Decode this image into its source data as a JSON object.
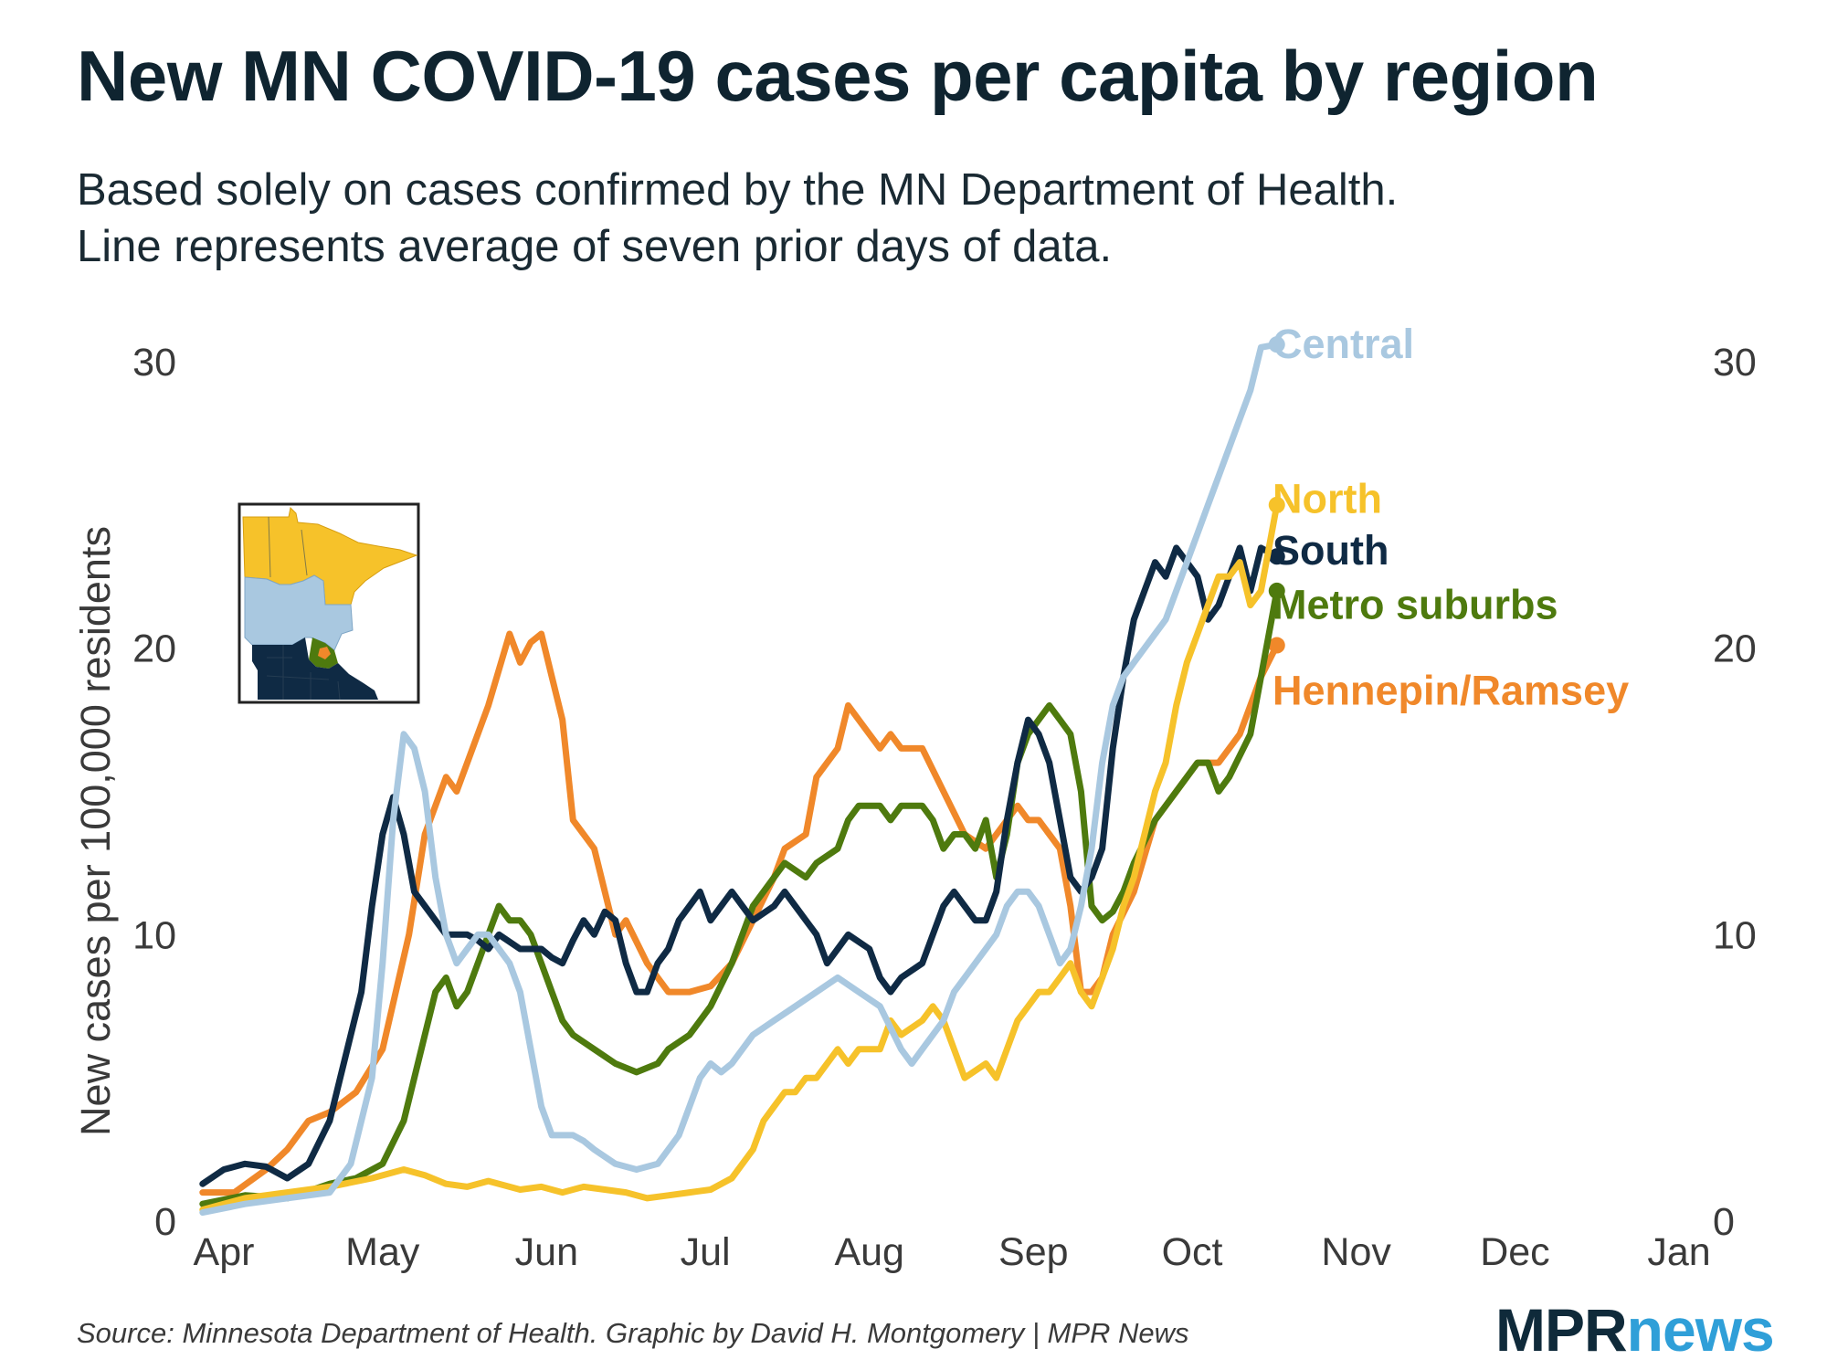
{
  "title": "New MN COVID-19 cases per capita by region",
  "subtitle_line1": "Based solely on cases confirmed by the MN Department of Health.",
  "subtitle_line2": "Line represents average of seven prior days of data.",
  "source": "Source: Minnesota Department of Health. Graphic by David H. Montgomery | MPR News",
  "logo": {
    "part1": "MPR",
    "part2": "news"
  },
  "chart_data": {
    "type": "line",
    "title": "New MN COVID-19 cases per capita by region",
    "ylabel": "New cases per 100,000 residents",
    "xlabel": "",
    "ylim": [
      0,
      30
    ],
    "yticks": [
      0,
      10,
      20,
      30
    ],
    "xlim": [
      0,
      275
    ],
    "xticks": [
      {
        "label": "Apr",
        "day": 0
      },
      {
        "label": "May",
        "day": 30
      },
      {
        "label": "Jun",
        "day": 61
      },
      {
        "label": "Jul",
        "day": 91
      },
      {
        "label": "Aug",
        "day": 122
      },
      {
        "label": "Sep",
        "day": 153
      },
      {
        "label": "Oct",
        "day": 183
      },
      {
        "label": "Nov",
        "day": 214
      },
      {
        "label": "Dec",
        "day": 244
      },
      {
        "label": "Jan",
        "day": 275
      }
    ],
    "x_unit": "days since April 1",
    "grid": false,
    "series": [
      {
        "name": "Hennepin/Ramsey",
        "color": "#f0882a",
        "x": [
          -4,
          2,
          8,
          12,
          16,
          20,
          25,
          30,
          35,
          38,
          42,
          44,
          46,
          50,
          54,
          56,
          58,
          60,
          62,
          64,
          66,
          70,
          74,
          76,
          80,
          84,
          88,
          92,
          96,
          100,
          104,
          106,
          110,
          112,
          116,
          118,
          122,
          124,
          126,
          128,
          132,
          136,
          140,
          144,
          148,
          150,
          152,
          154,
          156,
          158,
          160,
          162,
          164,
          166,
          168,
          172,
          176,
          180,
          184,
          188,
          192,
          196,
          199
        ],
        "y": [
          1,
          1,
          1.8,
          2.5,
          3.5,
          3.8,
          4.5,
          6,
          10,
          13.5,
          15.5,
          15,
          16,
          18,
          20.5,
          19.5,
          20.2,
          20.5,
          19,
          17.5,
          14,
          13,
          10,
          10.5,
          9,
          8,
          8,
          8.2,
          9,
          10.5,
          12,
          13,
          13.5,
          15.5,
          16.5,
          18,
          17,
          16.5,
          17,
          16.5,
          16.5,
          15,
          13.5,
          13,
          14,
          14.5,
          14,
          14,
          13.5,
          13,
          11,
          8,
          8,
          8.5,
          10,
          11.5,
          14,
          15,
          16,
          16,
          17,
          19,
          20.1
        ]
      },
      {
        "name": "Metro suburbs",
        "color": "#4e7a0e",
        "x": [
          -4,
          4,
          12,
          20,
          25,
          30,
          34,
          38,
          40,
          42,
          44,
          46,
          48,
          50,
          52,
          54,
          56,
          58,
          60,
          62,
          64,
          66,
          70,
          74,
          78,
          82,
          84,
          88,
          92,
          96,
          100,
          104,
          106,
          110,
          112,
          116,
          118,
          120,
          124,
          126,
          128,
          132,
          134,
          136,
          138,
          140,
          142,
          144,
          146,
          148,
          150,
          152,
          154,
          156,
          158,
          160,
          162,
          164,
          166,
          168,
          170,
          172,
          176,
          180,
          184,
          186,
          188,
          190,
          194,
          199
        ],
        "y": [
          0.6,
          0.9,
          0.8,
          1.3,
          1.5,
          2,
          3.5,
          6.5,
          8,
          8.5,
          7.5,
          8,
          9,
          10,
          11,
          10.5,
          10.5,
          10,
          9,
          8,
          7,
          6.5,
          6,
          5.5,
          5.2,
          5.5,
          6,
          6.5,
          7.5,
          9,
          11,
          12,
          12.5,
          12,
          12.5,
          13,
          14,
          14.5,
          14.5,
          14,
          14.5,
          14.5,
          14,
          13,
          13.5,
          13.5,
          13,
          14,
          12,
          13.5,
          16,
          17,
          17.5,
          18,
          17.5,
          17,
          15,
          11,
          10.5,
          10.8,
          11.5,
          12.5,
          14,
          15,
          16,
          16,
          15,
          15.5,
          17,
          22
        ]
      },
      {
        "name": "South",
        "color": "#0f2a44",
        "x": [
          -4,
          0,
          4,
          8,
          12,
          16,
          20,
          22,
          24,
          26,
          28,
          30,
          32,
          34,
          36,
          38,
          40,
          42,
          44,
          46,
          48,
          50,
          52,
          56,
          60,
          62,
          64,
          66,
          68,
          70,
          72,
          74,
          76,
          78,
          80,
          82,
          84,
          86,
          88,
          90,
          92,
          94,
          96,
          98,
          100,
          104,
          106,
          108,
          110,
          112,
          114,
          116,
          118,
          122,
          124,
          126,
          128,
          132,
          134,
          136,
          138,
          140,
          142,
          144,
          146,
          148,
          150,
          152,
          154,
          156,
          158,
          160,
          162,
          164,
          166,
          168,
          170,
          172,
          174,
          176,
          178,
          180,
          182,
          184,
          186,
          188,
          190,
          192,
          194,
          196,
          199
        ],
        "y": [
          1.3,
          1.8,
          2,
          1.9,
          1.5,
          2,
          3.5,
          5,
          6.5,
          8,
          11,
          13.5,
          14.8,
          13.5,
          11.5,
          11,
          10.5,
          10,
          10,
          10,
          9.8,
          9.5,
          10,
          9.5,
          9.5,
          9.2,
          9,
          9.8,
          10.5,
          10,
          10.8,
          10.5,
          9,
          8,
          8,
          9,
          9.5,
          10.5,
          11,
          11.5,
          10.5,
          11,
          11.5,
          11,
          10.5,
          11,
          11.5,
          11,
          10.5,
          10,
          9,
          9.5,
          10,
          9.5,
          8.5,
          8,
          8.5,
          9,
          10,
          11,
          11.5,
          11,
          10.5,
          10.5,
          11.5,
          14,
          16,
          17.5,
          17,
          16,
          14,
          12,
          11.5,
          12,
          13,
          16.5,
          19,
          21,
          22,
          23,
          22.5,
          23.5,
          23,
          22.5,
          21,
          21.5,
          22.5,
          23.5,
          22,
          23.5,
          23.2
        ]
      },
      {
        "name": "North",
        "color": "#f6c22a",
        "x": [
          -4,
          4,
          12,
          20,
          28,
          34,
          38,
          42,
          46,
          50,
          56,
          60,
          64,
          68,
          72,
          76,
          80,
          84,
          88,
          92,
          96,
          100,
          102,
          104,
          106,
          108,
          110,
          112,
          116,
          118,
          120,
          124,
          126,
          128,
          132,
          134,
          136,
          138,
          140,
          144,
          146,
          148,
          150,
          152,
          154,
          156,
          158,
          160,
          162,
          164,
          166,
          168,
          170,
          172,
          174,
          176,
          178,
          180,
          182,
          184,
          186,
          188,
          190,
          192,
          194,
          196,
          199
        ],
        "y": [
          0.4,
          0.8,
          1,
          1.2,
          1.5,
          1.8,
          1.6,
          1.3,
          1.2,
          1.4,
          1.1,
          1.2,
          1.0,
          1.2,
          1.1,
          1,
          0.8,
          0.9,
          1,
          1.1,
          1.5,
          2.5,
          3.5,
          4,
          4.5,
          4.5,
          5,
          5,
          6,
          5.5,
          6,
          6,
          7,
          6.5,
          7,
          7.5,
          7,
          6,
          5,
          5.5,
          5,
          6,
          7,
          7.5,
          8,
          8,
          8.5,
          9,
          8,
          7.5,
          8.5,
          9.5,
          11,
          12,
          13.5,
          15,
          16,
          18,
          19.5,
          20.5,
          21.5,
          22.5,
          22.5,
          23,
          21.5,
          22,
          25
        ]
      },
      {
        "name": "Central",
        "color": "#a9c8e0",
        "x": [
          -4,
          4,
          12,
          20,
          24,
          26,
          28,
          30,
          32,
          34,
          36,
          38,
          40,
          42,
          44,
          46,
          48,
          50,
          52,
          54,
          56,
          58,
          60,
          62,
          64,
          66,
          68,
          70,
          74,
          78,
          82,
          86,
          88,
          90,
          92,
          94,
          96,
          98,
          100,
          104,
          108,
          112,
          116,
          120,
          124,
          128,
          130,
          132,
          134,
          136,
          138,
          140,
          142,
          144,
          146,
          148,
          150,
          152,
          154,
          156,
          158,
          160,
          162,
          164,
          166,
          168,
          170,
          172,
          174,
          176,
          178,
          180,
          182,
          184,
          186,
          188,
          190,
          192,
          194,
          196,
          199
        ],
        "y": [
          0.3,
          0.6,
          0.8,
          1,
          2,
          3.5,
          5,
          9,
          14,
          17,
          16.5,
          15,
          12,
          10,
          9,
          9.5,
          10,
          10,
          9.5,
          9,
          8,
          6,
          4,
          3,
          3,
          3,
          2.8,
          2.5,
          2,
          1.8,
          2,
          3,
          4,
          5,
          5.5,
          5.2,
          5.5,
          6,
          6.5,
          7,
          7.5,
          8,
          8.5,
          8,
          7.5,
          6,
          5.5,
          6,
          6.5,
          7,
          8,
          8.5,
          9,
          9.5,
          10,
          11,
          11.5,
          11.5,
          11,
          10,
          9,
          9.5,
          11,
          13,
          16,
          18,
          19,
          19.5,
          20,
          20.5,
          21,
          22,
          23,
          24,
          25,
          26,
          27,
          28,
          29,
          30.5,
          30.6
        ]
      }
    ]
  }
}
